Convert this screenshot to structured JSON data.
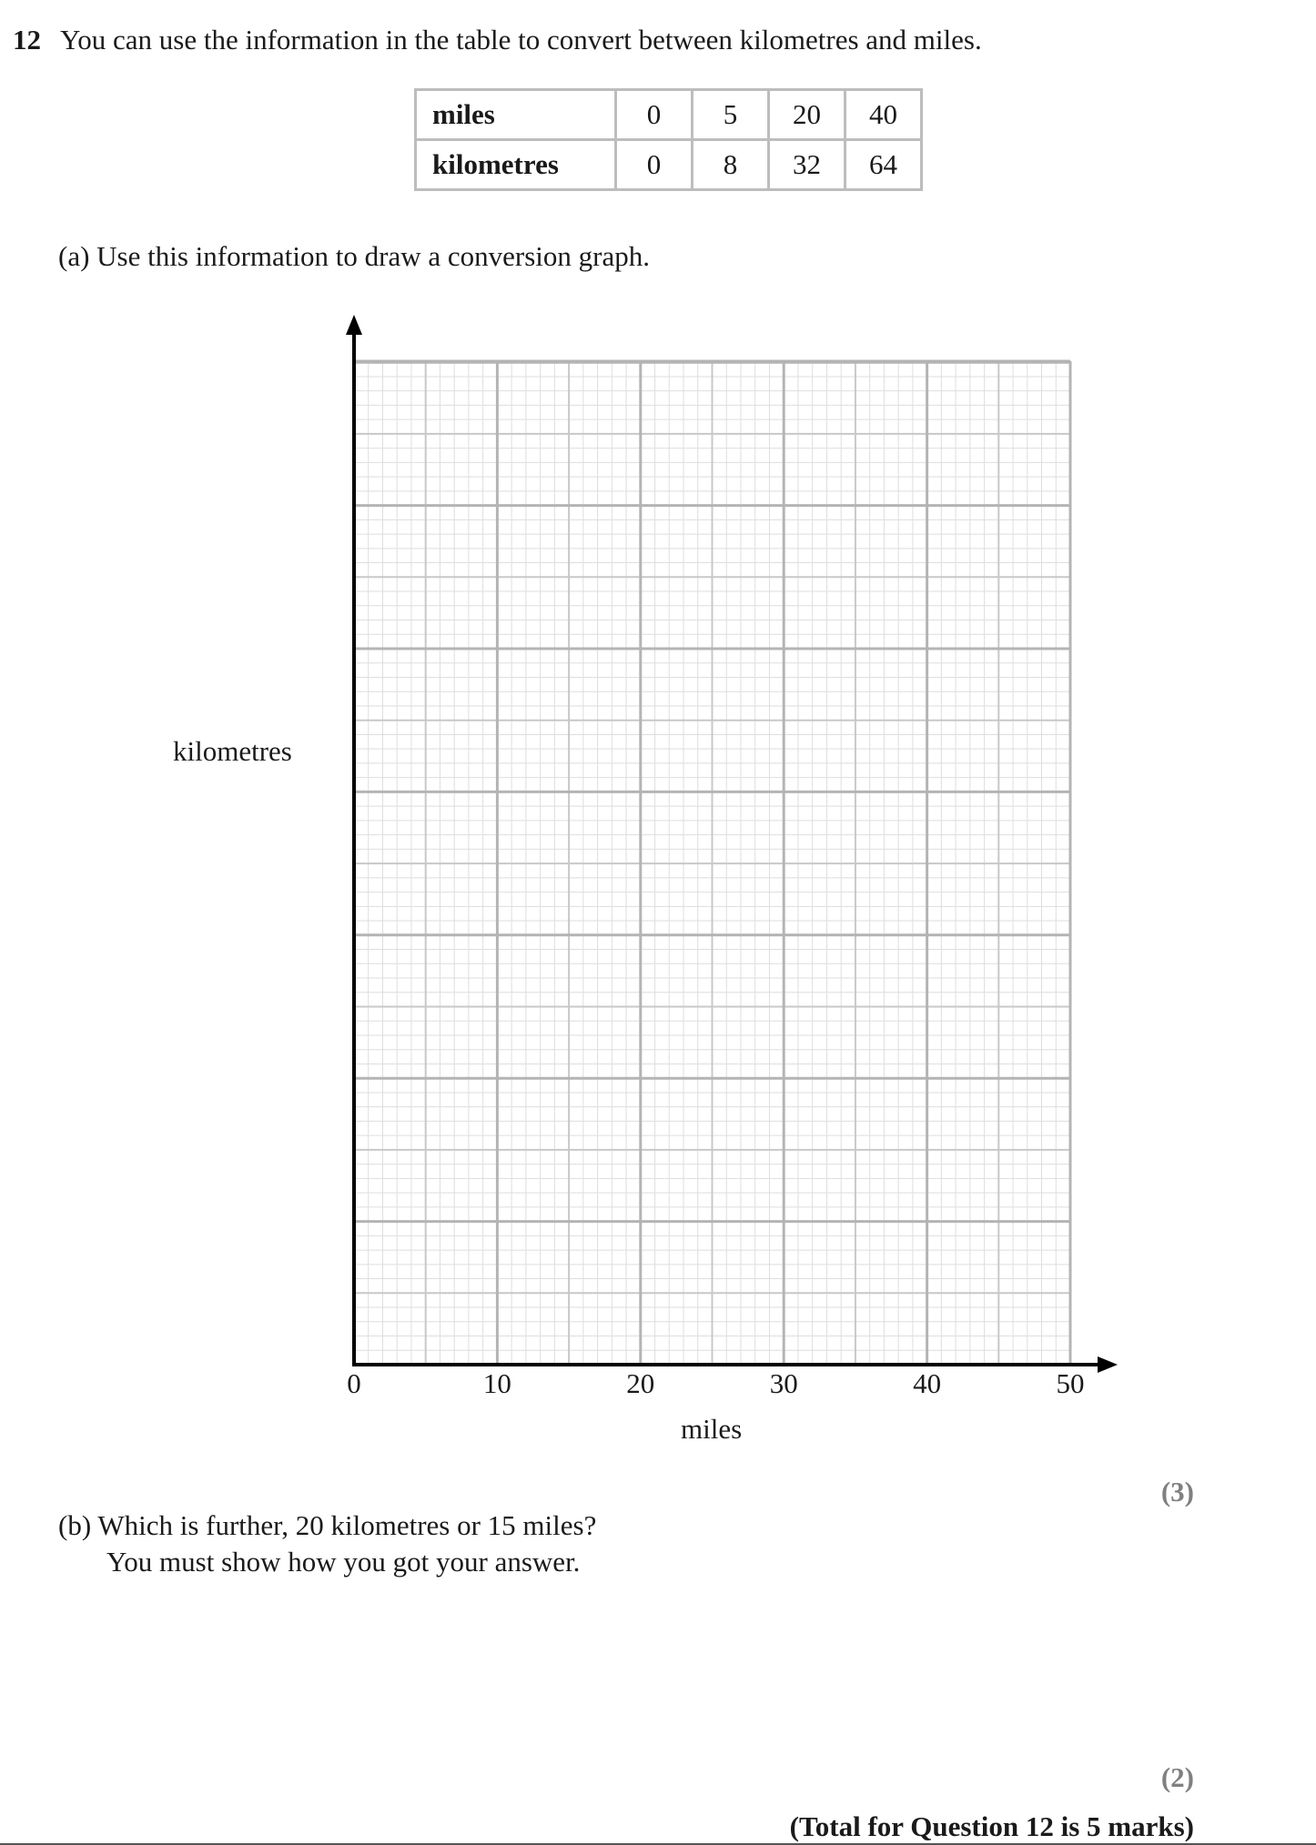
{
  "question": {
    "number": "12",
    "text": "You can use the information in the table to convert between kilometres and miles."
  },
  "table": {
    "rows": [
      {
        "header": "miles",
        "values": [
          "0",
          "5",
          "20",
          "40"
        ]
      },
      {
        "header": "kilometres",
        "values": [
          "0",
          "8",
          "32",
          "64"
        ]
      }
    ]
  },
  "part_a": {
    "text": "(a) Use this information to draw a conversion graph.",
    "mark": "(3)"
  },
  "chart_data": {
    "type": "line",
    "xlabel": "miles",
    "ylabel": "kilometres",
    "xlim": [
      0,
      50
    ],
    "x_ticks": [
      "0",
      "10",
      "20",
      "30",
      "40",
      "50"
    ],
    "grid": true,
    "series": []
  },
  "part_b": {
    "line1": "(b) Which is further, 20 kilometres or 15 miles?",
    "line2": "You must show how you got your answer.",
    "mark": "(2)"
  },
  "total": "(Total for Question 12 is 5 marks)"
}
